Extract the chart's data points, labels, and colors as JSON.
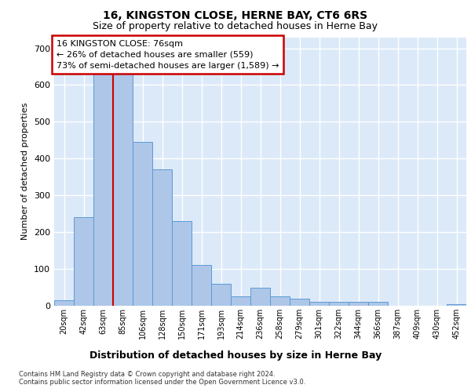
{
  "title": "16, KINGSTON CLOSE, HERNE BAY, CT6 6RS",
  "subtitle": "Size of property relative to detached houses in Herne Bay",
  "xlabel": "Distribution of detached houses by size in Herne Bay",
  "ylabel": "Number of detached properties",
  "categories": [
    "20sqm",
    "42sqm",
    "63sqm",
    "85sqm",
    "106sqm",
    "128sqm",
    "150sqm",
    "171sqm",
    "193sqm",
    "214sqm",
    "236sqm",
    "258sqm",
    "279sqm",
    "301sqm",
    "322sqm",
    "344sqm",
    "366sqm",
    "387sqm",
    "409sqm",
    "430sqm",
    "452sqm"
  ],
  "values": [
    15,
    240,
    660,
    650,
    445,
    370,
    230,
    110,
    60,
    25,
    50,
    25,
    20,
    10,
    10,
    10,
    10,
    0,
    0,
    0,
    5
  ],
  "bar_color": "#aec6e8",
  "bar_edge_color": "#5b9bd5",
  "vline_color": "#cc0000",
  "vline_x_index": 2.5,
  "annotation_text": "16 KINGSTON CLOSE: 76sqm\n← 26% of detached houses are smaller (559)\n73% of semi-detached houses are larger (1,589) →",
  "annotation_box_color": "#ffffff",
  "annotation_box_edge": "#cc0000",
  "ylim": [
    0,
    730
  ],
  "yticks": [
    0,
    100,
    200,
    300,
    400,
    500,
    600,
    700
  ],
  "footer": "Contains HM Land Registry data © Crown copyright and database right 2024.\nContains public sector information licensed under the Open Government Licence v3.0.",
  "background_color": "#dce9f8",
  "grid_color": "#ffffff",
  "fig_bg": "#ffffff",
  "title_fontsize": 10,
  "subtitle_fontsize": 9,
  "ylabel_fontsize": 8,
  "xlabel_fontsize": 9,
  "tick_fontsize": 7,
  "footer_fontsize": 6,
  "annotation_fontsize": 8
}
